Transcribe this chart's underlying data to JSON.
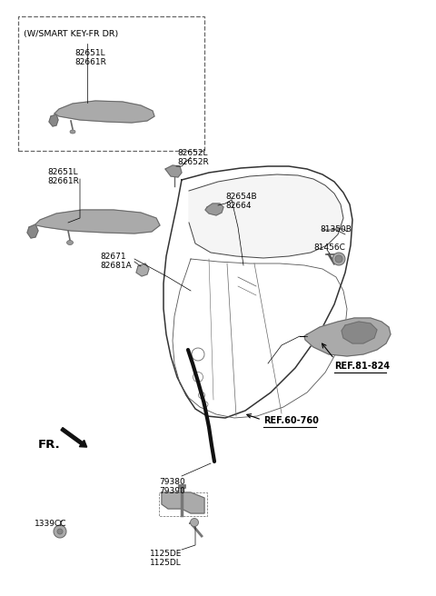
{
  "bg_color": "#ffffff",
  "fig_width": 4.8,
  "fig_height": 6.56,
  "dpi": 100,
  "labels": {
    "smart_key_box_title": "(W/SMART KEY-FR DR)",
    "lbl_82651L_82661R_box": "82651L\n82661R",
    "lbl_82652L_82652R": "82652L\n82652R",
    "lbl_82651L_82661R": "82651L\n82661R",
    "lbl_82654B_82664": "82654B\n82664",
    "lbl_82671_82681A": "82671\n82681A",
    "lbl_81350B": "81350B",
    "lbl_81456C": "81456C",
    "lbl_ref_81_824": "REF.81-824",
    "lbl_ref_60_760": "REF.60-760",
    "lbl_79380_79390": "79380\n79390",
    "lbl_1339CC": "1339CC",
    "lbl_1125DE_1125DL": "1125DE\n1125DL",
    "lbl_FR": "FR."
  },
  "line_color": "#000000",
  "part_gray": "#aaaaaa",
  "part_dark": "#666666",
  "edge_color": "#444444"
}
